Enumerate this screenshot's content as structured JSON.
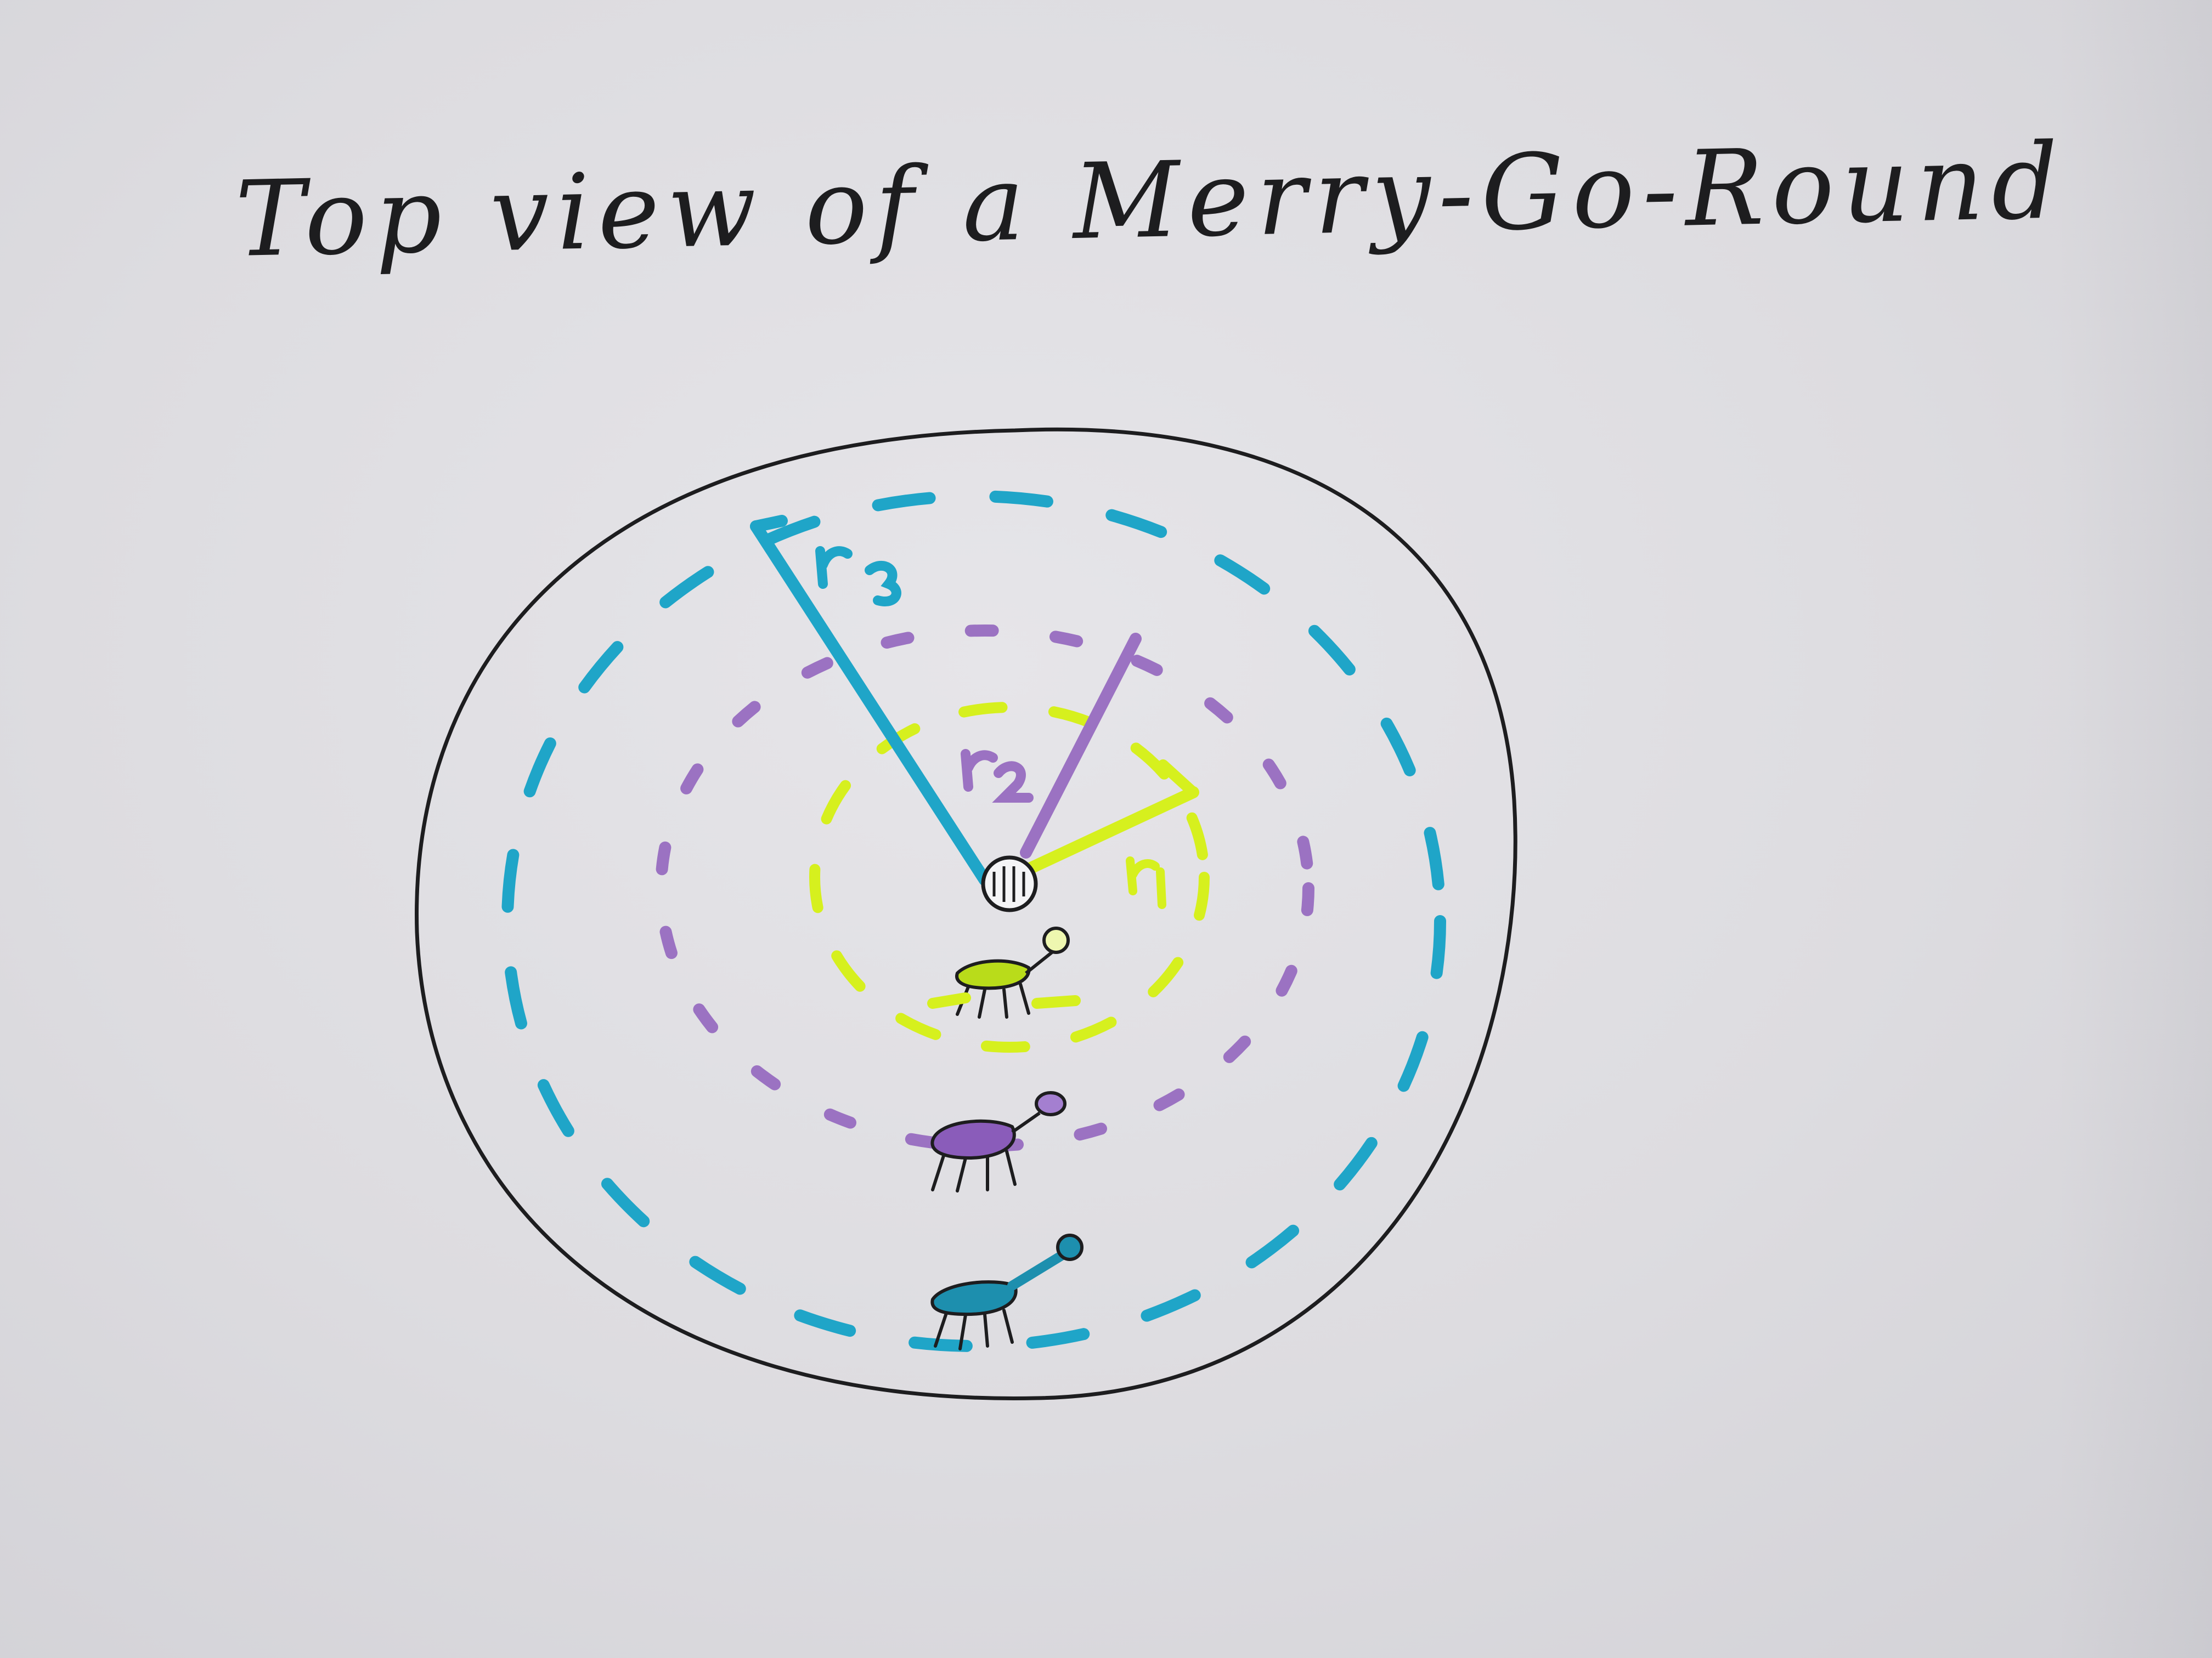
{
  "title": "Top view of a Merry-Go-Round",
  "colors": {
    "paper": "#e2e1e5",
    "ink": "#1d1d1f",
    "outer_ring": "#1fa5c8",
    "middle_ring": "#9b72c2",
    "inner_ring": "#d6f01e",
    "outer_horse": "#1d8fae",
    "middle_horse": "#8a5cba",
    "inner_horse": "#b9dc1a"
  },
  "elements": {
    "platform": "merry-go-round-platform",
    "center": "center-axle",
    "rings": [
      "outer-ring",
      "middle-ring",
      "inner-ring"
    ],
    "radius_lines": [
      "outer-radius-line",
      "middle-radius-line",
      "inner-radius-line"
    ],
    "radius_labels": [
      "outer-radius-label",
      "middle-radius-label",
      "inner-radius-label"
    ],
    "riders": [
      "inner-horse-icon",
      "middle-horse-icon",
      "outer-horse-icon"
    ]
  }
}
